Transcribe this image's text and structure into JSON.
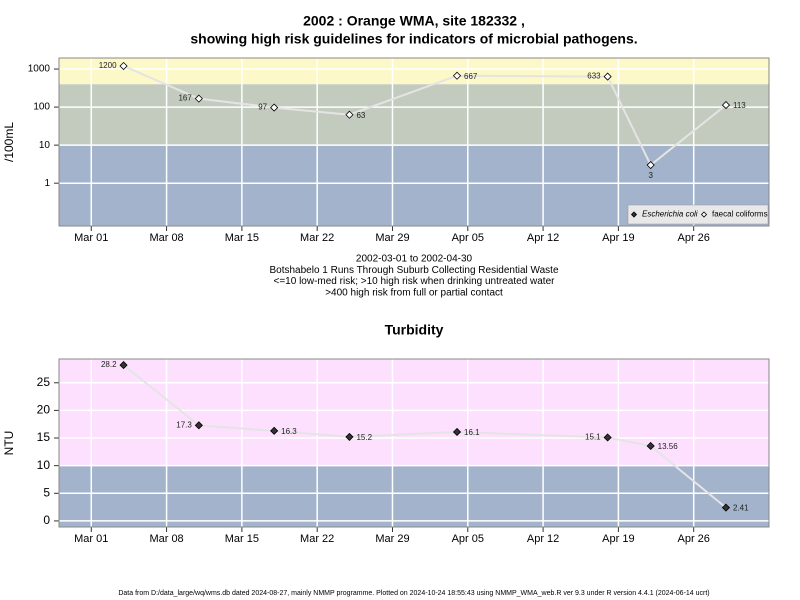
{
  "chart_data": [
    {
      "type": "line",
      "title": [
        "2002 : Orange WMA, site 182332 ,",
        "showing high risk guidelines for indicators of microbial pathogens."
      ],
      "y_label": "/100mL",
      "ylog": true,
      "ylim": [
        0.075,
        1950
      ],
      "yticks": [
        1,
        10,
        100,
        1000
      ],
      "xlim": [
        "2002-02-26",
        "2002-05-03"
      ],
      "xticks": [
        {
          "value": "2002-03-01",
          "label": "Mar 01"
        },
        {
          "value": "2002-03-08",
          "label": "Mar 08"
        },
        {
          "value": "2002-03-15",
          "label": "Mar 15"
        },
        {
          "value": "2002-03-22",
          "label": "Mar 22"
        },
        {
          "value": "2002-03-29",
          "label": "Mar 29"
        },
        {
          "value": "2002-04-05",
          "label": "Apr 05"
        },
        {
          "value": "2002-04-12",
          "label": "Apr 12"
        },
        {
          "value": "2002-04-19",
          "label": "Apr 19"
        },
        {
          "value": "2002-04-26",
          "label": "Apr 26"
        }
      ],
      "thresholds": [
        10,
        400
      ],
      "band_colors": [
        "#a2b3cb",
        "#c3cbbe",
        "#fdf8c8"
      ],
      "grid": true,
      "legend": "bottom right",
      "x": [
        "2002-03-04",
        "2002-03-11",
        "2002-03-18",
        "2002-03-25",
        "2002-04-04",
        "2002-04-18",
        "2002-04-22",
        "2002-04-29"
      ],
      "series": [
        {
          "name": "Escherichia coli",
          "marker": "filled",
          "color": "#333333",
          "values": [
            null,
            null,
            null,
            null,
            null,
            null,
            null,
            null
          ]
        },
        {
          "name": "faecal coliforms",
          "marker": "open",
          "color": "#ffffff",
          "values": [
            1200,
            167,
            97,
            63,
            667,
            633,
            3,
            113
          ]
        }
      ],
      "notes": [
        "2002-03-01 to 2002-04-30",
        "Botshabelo 1 Runs Through Suburb Collecting Residential Waste",
        "<=10 low-med risk; >10 high risk when drinking untreated water",
        ">400 high risk from full or partial contact"
      ]
    },
    {
      "type": "line",
      "title": [
        "Turbidity"
      ],
      "y_label": "NTU",
      "ylog": false,
      "ylim": [
        -1.1,
        29.3
      ],
      "yticks": [
        0,
        5,
        10,
        15,
        20,
        25
      ],
      "xlim": [
        "2002-02-26",
        "2002-05-03"
      ],
      "xticks": [
        {
          "value": "2002-03-01",
          "label": "Mar 01"
        },
        {
          "value": "2002-03-08",
          "label": "Mar 08"
        },
        {
          "value": "2002-03-15",
          "label": "Mar 15"
        },
        {
          "value": "2002-03-22",
          "label": "Mar 22"
        },
        {
          "value": "2002-03-29",
          "label": "Mar 29"
        },
        {
          "value": "2002-04-05",
          "label": "Apr 05"
        },
        {
          "value": "2002-04-12",
          "label": "Apr 12"
        },
        {
          "value": "2002-04-19",
          "label": "Apr 19"
        },
        {
          "value": "2002-04-26",
          "label": "Apr 26"
        }
      ],
      "thresholds": [
        10
      ],
      "band_colors": [
        "#a2b3cb",
        "#fde0fd"
      ],
      "grid": true,
      "marker": "filled",
      "color": "#333333",
      "x": [
        "2002-03-04",
        "2002-03-11",
        "2002-03-18",
        "2002-03-25",
        "2002-04-04",
        "2002-04-18",
        "2002-04-22",
        "2002-04-29"
      ],
      "values": [
        28.2,
        17.3,
        16.3,
        15.2,
        16.1,
        15.1,
        13.56,
        2.41
      ]
    }
  ],
  "footer": "Data from D:/data_large/wq/wms.db dated 2024-08-27, mainly NMMP programme. Plotted on 2024-10-24 18:55:43 using NMMP_WMA_web.R ver 9.3 under R version 4.4.1 (2024-06-14 ucrt)"
}
